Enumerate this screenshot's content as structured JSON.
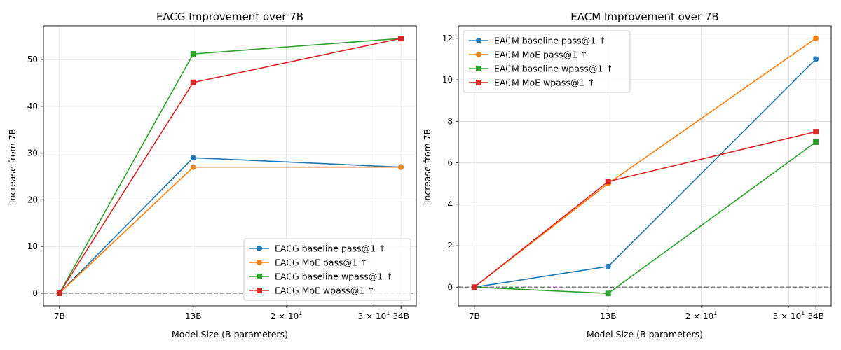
{
  "chart_data": [
    {
      "type": "line",
      "title": "EACG Improvement over 7B",
      "xlabel": "Model Size (B parameters)",
      "ylabel": "Increase from 7B",
      "xscale": "log",
      "x": [
        7,
        13,
        34
      ],
      "xlim": [
        6.5,
        36.5
      ],
      "ylim": [
        -2.7,
        57.2
      ],
      "yticks": [
        0,
        10,
        20,
        30,
        40,
        50
      ],
      "xticklabels": [
        "7B",
        "13B",
        "34B"
      ],
      "xticklabels_extra": [
        {
          "value": 20,
          "base": "2",
          "exp": "10",
          "power": "1"
        },
        {
          "value": 30,
          "base": "3",
          "exp": "10",
          "power": "1"
        }
      ],
      "grid": true,
      "baseline": 0,
      "legend": "lower-right",
      "series": [
        {
          "name": "EACG baseline pass@1 ↑",
          "values": [
            0,
            29,
            27
          ],
          "color": "#1f77b4",
          "marker": "circle"
        },
        {
          "name": "EACG MoE pass@1 ↑",
          "values": [
            0,
            27,
            27
          ],
          "color": "#ff7f0e",
          "marker": "circle"
        },
        {
          "name": "EACG baseline wpass@1 ↑",
          "values": [
            0,
            51.2,
            54.5
          ],
          "color": "#2ca02c",
          "marker": "square"
        },
        {
          "name": "EACG MoE wpass@1 ↑",
          "values": [
            0,
            45.1,
            54.5
          ],
          "color": "#d62728",
          "marker": "square"
        }
      ]
    },
    {
      "type": "line",
      "title": "EACM Improvement over 7B",
      "xlabel": "Model Size (B parameters)",
      "ylabel": "Increase from 7B",
      "xscale": "log",
      "x": [
        7,
        13,
        34
      ],
      "xlim": [
        6.5,
        36.5
      ],
      "ylim": [
        -0.9,
        12.6
      ],
      "yticks": [
        0,
        2,
        4,
        6,
        8,
        10,
        12
      ],
      "xticklabels": [
        "7B",
        "13B",
        "34B"
      ],
      "xticklabels_extra": [
        {
          "value": 20,
          "base": "2",
          "exp": "10",
          "power": "1"
        },
        {
          "value": 30,
          "base": "3",
          "exp": "10",
          "power": "1"
        }
      ],
      "grid": true,
      "baseline": 0,
      "legend": "top-left",
      "series": [
        {
          "name": "EACM baseline pass@1 ↑",
          "values": [
            0,
            1,
            11
          ],
          "color": "#1f77b4",
          "marker": "circle"
        },
        {
          "name": "EACM MoE pass@1 ↑",
          "values": [
            0,
            5,
            12
          ],
          "color": "#ff7f0e",
          "marker": "circle"
        },
        {
          "name": "EACM baseline wpass@1 ↑",
          "values": [
            0,
            -0.3,
            7
          ],
          "color": "#2ca02c",
          "marker": "square"
        },
        {
          "name": "EACM MoE wpass@1 ↑",
          "values": [
            0,
            5.1,
            7.5
          ],
          "color": "#d62728",
          "marker": "square"
        }
      ]
    }
  ]
}
